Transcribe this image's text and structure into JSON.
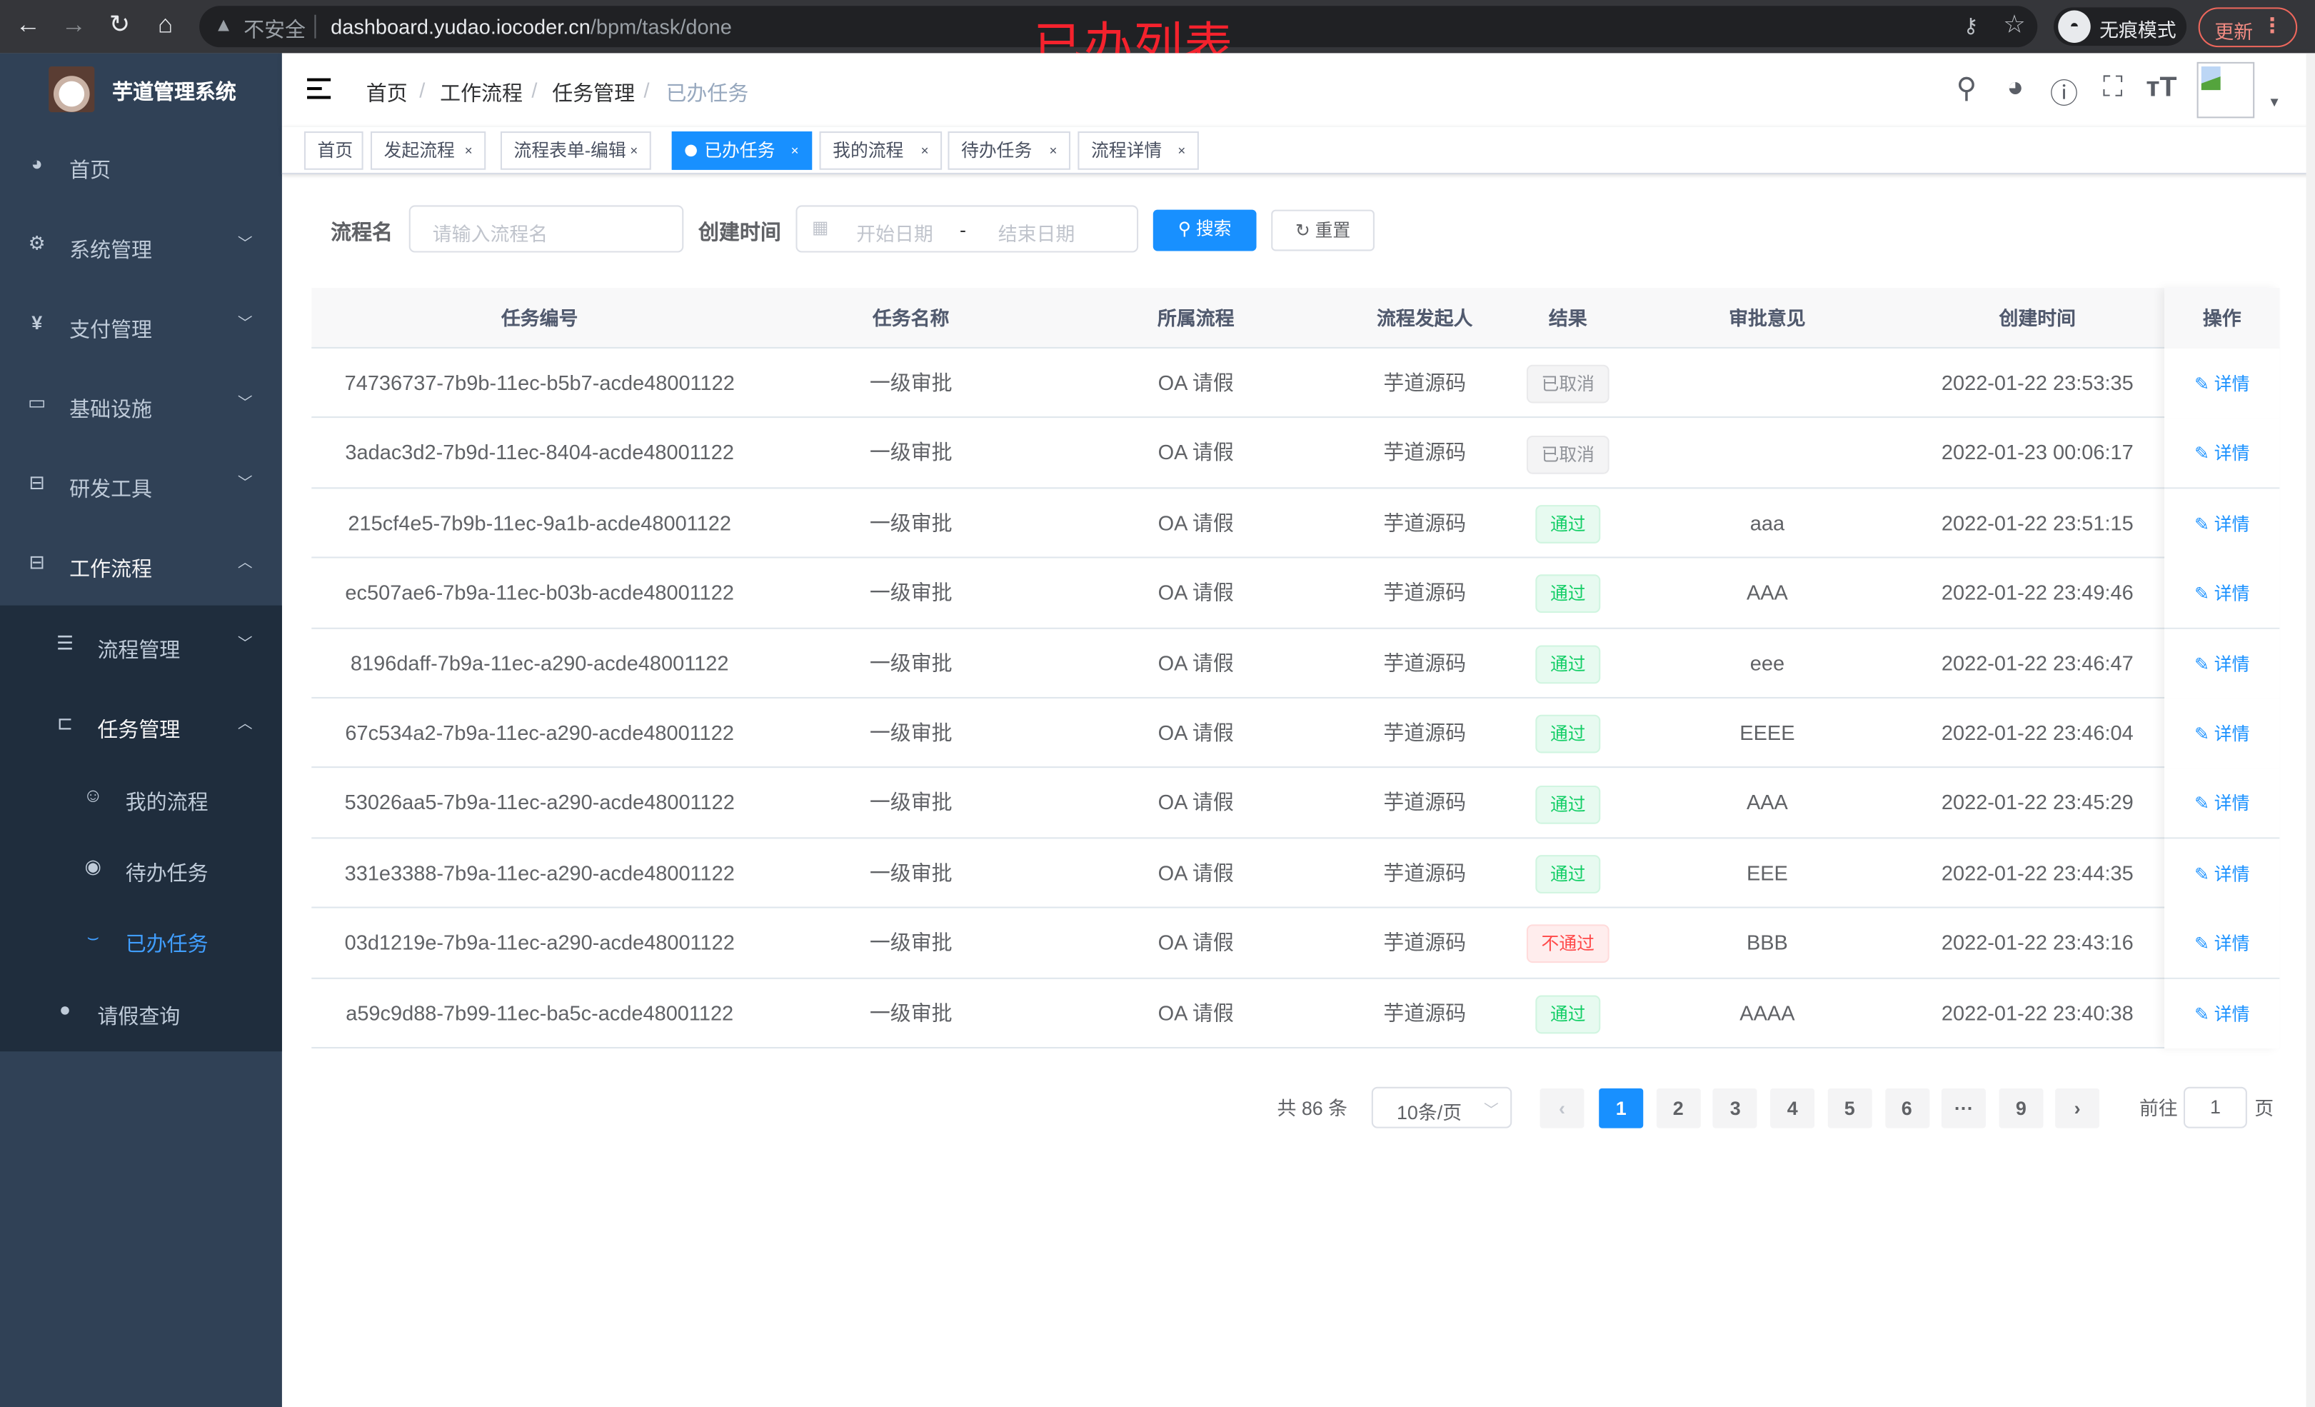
{
  "browser": {
    "insecure_label": "不安全",
    "url_host": "dashboard.yudao.iocoder.cn",
    "url_path": "/bpm/task/done",
    "incognito_label": "无痕模式",
    "update_label": "更新"
  },
  "annotation": "已办列表",
  "sidebar": {
    "title": "芋道管理系统",
    "items": [
      {
        "label": "首页",
        "icon": "dashboard-icon"
      },
      {
        "label": "系统管理",
        "icon": "gear-icon"
      },
      {
        "label": "支付管理",
        "icon": "yen-icon"
      },
      {
        "label": "基础设施",
        "icon": "monitor-icon"
      },
      {
        "label": "研发工具",
        "icon": "toolbox-icon"
      },
      {
        "label": "工作流程",
        "icon": "briefcase-icon"
      }
    ],
    "sub_items": [
      {
        "label": "流程管理",
        "icon": "list-icon"
      },
      {
        "label": "任务管理",
        "icon": "tree-icon"
      }
    ],
    "task_items": [
      {
        "label": "我的流程",
        "icon": "people-icon"
      },
      {
        "label": "待办任务",
        "icon": "eye-icon"
      },
      {
        "label": "已办任务",
        "icon": "eye-closed-icon",
        "active": true
      }
    ],
    "leave_item": {
      "label": "请假查询",
      "icon": "user-icon"
    }
  },
  "breadcrumb": [
    "首页",
    "工作流程",
    "任务管理",
    "已办任务"
  ],
  "tags": [
    {
      "label": "首页",
      "closable": false
    },
    {
      "label": "发起流程",
      "closable": true
    },
    {
      "label": "流程表单-编辑",
      "closable": true
    },
    {
      "label": "已办任务",
      "closable": true,
      "active": true
    },
    {
      "label": "我的流程",
      "closable": true
    },
    {
      "label": "待办任务",
      "closable": true
    },
    {
      "label": "流程详情",
      "closable": true
    }
  ],
  "search": {
    "name_label": "流程名",
    "name_placeholder": "请输入流程名",
    "time_label": "创建时间",
    "start_placeholder": "开始日期",
    "range_sep": "-",
    "end_placeholder": "结束日期",
    "search_label": "搜索",
    "reset_label": "重置"
  },
  "table": {
    "columns": [
      "任务编号",
      "任务名称",
      "所属流程",
      "流程发起人",
      "结果",
      "审批意见",
      "创建时间",
      "操作"
    ],
    "action_label": "详情",
    "rows": [
      {
        "id": "74736737-7b9b-11ec-b5b7-acde48001122",
        "name": "一级审批",
        "process": "OA 请假",
        "starter": "芋道源码",
        "result": "已取消",
        "status": "info",
        "comment": "",
        "time": "2022-01-22 23:53:35"
      },
      {
        "id": "3adac3d2-7b9d-11ec-8404-acde48001122",
        "name": "一级审批",
        "process": "OA 请假",
        "starter": "芋道源码",
        "result": "已取消",
        "status": "info",
        "comment": "",
        "time": "2022-01-23 00:06:17"
      },
      {
        "id": "215cf4e5-7b9b-11ec-9a1b-acde48001122",
        "name": "一级审批",
        "process": "OA 请假",
        "starter": "芋道源码",
        "result": "通过",
        "status": "ok",
        "comment": "aaa",
        "time": "2022-01-22 23:51:15"
      },
      {
        "id": "ec507ae6-7b9a-11ec-b03b-acde48001122",
        "name": "一级审批",
        "process": "OA 请假",
        "starter": "芋道源码",
        "result": "通过",
        "status": "ok",
        "comment": "AAA",
        "time": "2022-01-22 23:49:46"
      },
      {
        "id": "8196daff-7b9a-11ec-a290-acde48001122",
        "name": "一级审批",
        "process": "OA 请假",
        "starter": "芋道源码",
        "result": "通过",
        "status": "ok",
        "comment": "eee",
        "time": "2022-01-22 23:46:47"
      },
      {
        "id": "67c534a2-7b9a-11ec-a290-acde48001122",
        "name": "一级审批",
        "process": "OA 请假",
        "starter": "芋道源码",
        "result": "通过",
        "status": "ok",
        "comment": "EEEE",
        "time": "2022-01-22 23:46:04"
      },
      {
        "id": "53026aa5-7b9a-11ec-a290-acde48001122",
        "name": "一级审批",
        "process": "OA 请假",
        "starter": "芋道源码",
        "result": "通过",
        "status": "ok",
        "comment": "AAA",
        "time": "2022-01-22 23:45:29"
      },
      {
        "id": "331e3388-7b9a-11ec-a290-acde48001122",
        "name": "一级审批",
        "process": "OA 请假",
        "starter": "芋道源码",
        "result": "通过",
        "status": "ok",
        "comment": "EEE",
        "time": "2022-01-22 23:44:35"
      },
      {
        "id": "03d1219e-7b9a-11ec-a290-acde48001122",
        "name": "一级审批",
        "process": "OA 请假",
        "starter": "芋道源码",
        "result": "不通过",
        "status": "bad",
        "comment": "BBB",
        "time": "2022-01-22 23:43:16"
      },
      {
        "id": "a59c9d88-7b99-11ec-ba5c-acde48001122",
        "name": "一级审批",
        "process": "OA 请假",
        "starter": "芋道源码",
        "result": "通过",
        "status": "ok",
        "comment": "AAAA",
        "time": "2022-01-22 23:40:38"
      }
    ]
  },
  "pagination": {
    "total_label": "共 86 条",
    "page_size": "10条/页",
    "pages": [
      "1",
      "2",
      "3",
      "4",
      "5",
      "6",
      "···",
      "9"
    ],
    "current": "1",
    "goto_label": "前往",
    "goto_value": "1",
    "page_suffix": "页"
  },
  "colors": {
    "primary": "#1890ff",
    "sidebar": "#304156",
    "success": "#13ce66",
    "danger": "#ff4949"
  }
}
